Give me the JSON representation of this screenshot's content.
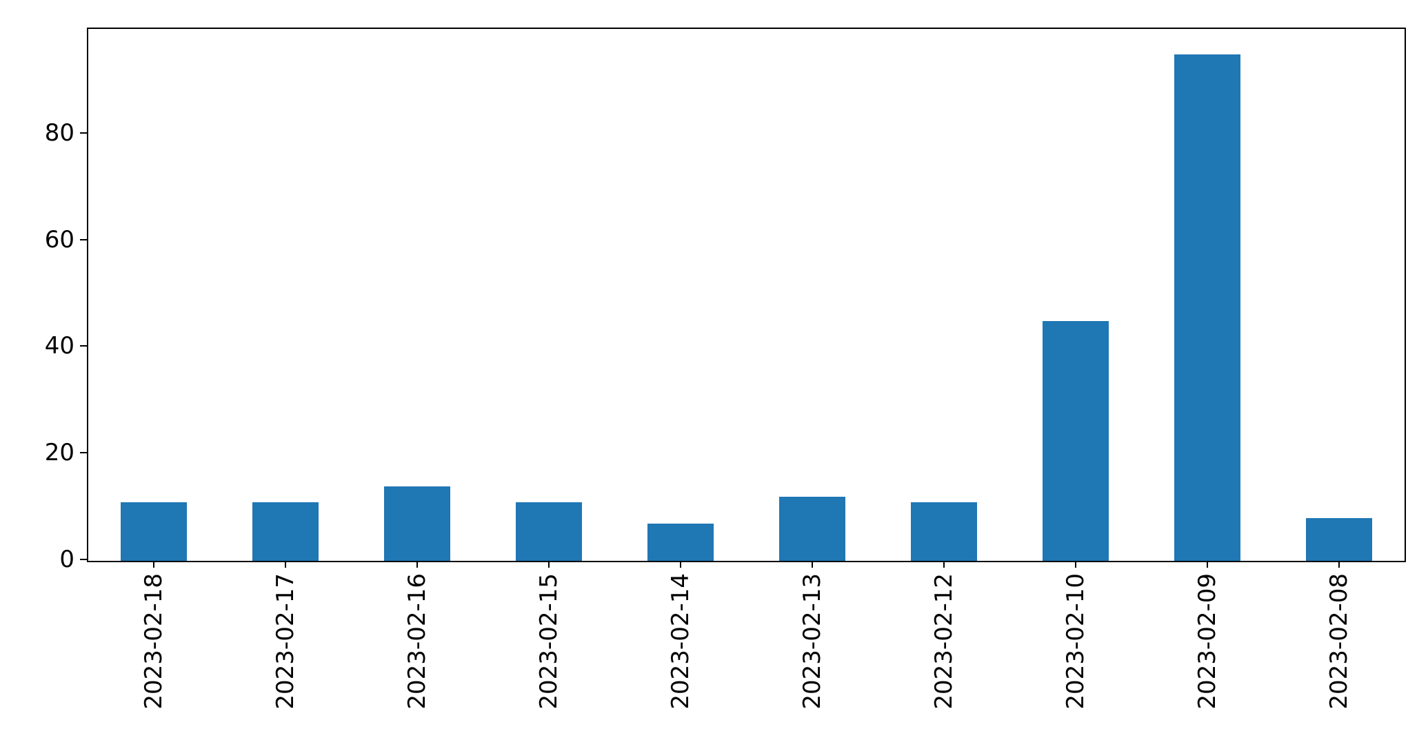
{
  "chart_data": {
    "type": "bar",
    "title": "",
    "xlabel": "",
    "ylabel": "",
    "categories": [
      "2023-02-18",
      "2023-02-17",
      "2023-02-16",
      "2023-02-15",
      "2023-02-14",
      "2023-02-13",
      "2023-02-12",
      "2023-02-10",
      "2023-02-09",
      "2023-02-08"
    ],
    "values": [
      11,
      11,
      14,
      11,
      7,
      12,
      11,
      45,
      95,
      8
    ],
    "ylim": [
      0,
      99.75
    ],
    "yticks": [
      0,
      20,
      40,
      60,
      80
    ],
    "bar_color": "#1f77b4",
    "axis_color": "#000000",
    "grid": false,
    "legend": null,
    "x_tick_rotation": 90
  }
}
